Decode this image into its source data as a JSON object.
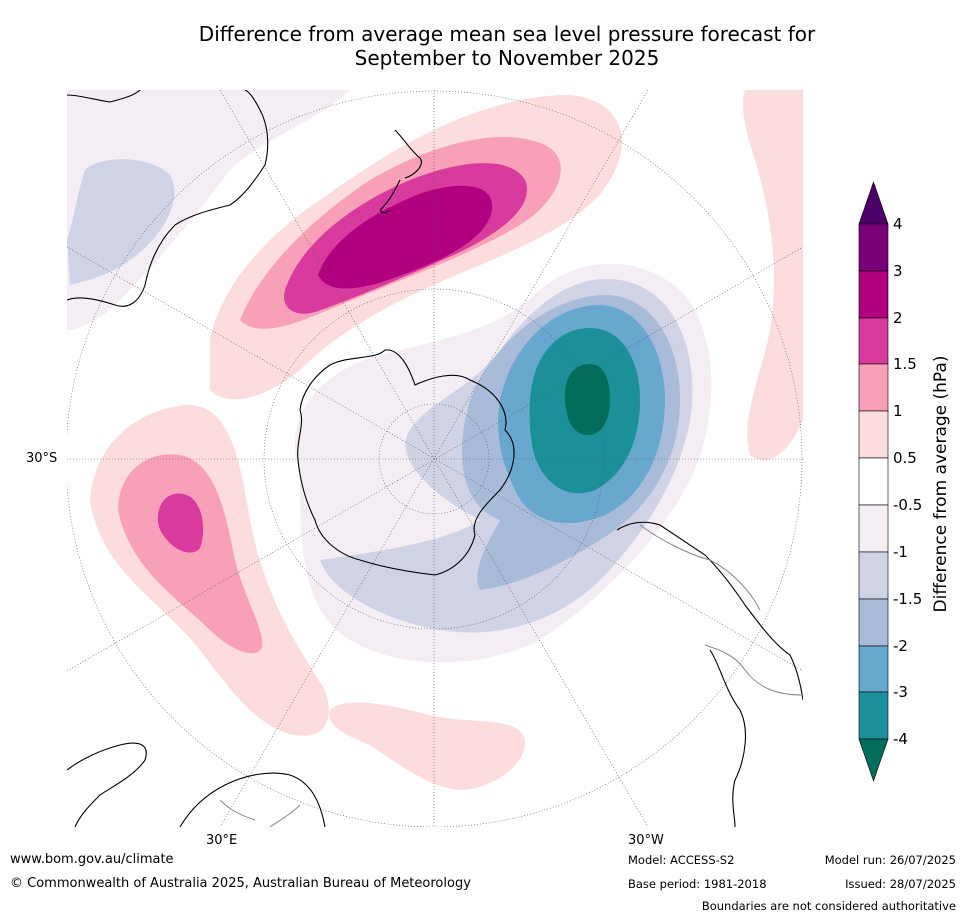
{
  "title": {
    "line1": "Difference from average mean sea level pressure forecast for",
    "line2": "September to November 2025"
  },
  "map": {
    "projection": "south-polar stereographic",
    "lat_labels": [
      "30°S"
    ],
    "lon_labels": [
      "30°E",
      "30°W"
    ]
  },
  "colorbar": {
    "label": "Difference from average (hPa)",
    "ticks": [
      "4",
      "3",
      "2",
      "1.5",
      "1",
      "0.5",
      "-0.5",
      "-1",
      "-1.5",
      "-2",
      "-3",
      "-4"
    ],
    "extend": "both",
    "colors": {
      "above_4": "#4a0068",
      "3_to_4": "#7a007a",
      "2_to_3": "#b0007f",
      "1.5_to_2": "#d93a9d",
      "1_to_1.5": "#f8a0b8",
      "0.5_to_1": "#fcdcdc",
      "-0.5_to_0.5": "#ffffff",
      "-1_to_-0.5": "#f4eef4",
      "-1.5_to_-1": "#d0d2e6",
      "-2_to_-1.5": "#a8bcda",
      "-3_to_-2": "#68a8cf",
      "-4_to_-3": "#1c9099",
      "below_-4": "#016c59"
    }
  },
  "footer": {
    "website": "www.bom.gov.au/climate",
    "copyright": "© Commonwealth of Australia 2025, Australian Bureau of Meteorology",
    "model": "Model: ACCESS-S2",
    "base_period": "Base period: 1981-2018",
    "model_run": "Model run: 26/07/2025",
    "issued": "Issued: 28/07/2025",
    "disclaimer": "Boundaries are not considered authoritative"
  }
}
